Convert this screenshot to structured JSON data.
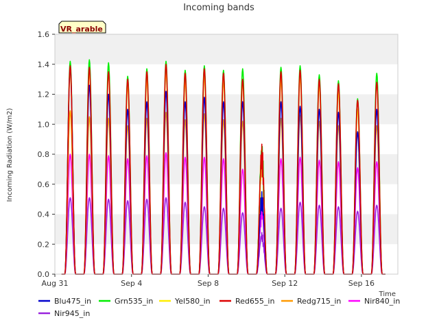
{
  "chart_data": {
    "type": "line",
    "title": "Incoming bands",
    "xlabel": "Time",
    "ylabel": "Incoming Radiation (W/m2)",
    "ylim": [
      0,
      1.6
    ],
    "yticks": [
      "0.0",
      "0.2",
      "0.4",
      "0.6",
      "0.8",
      "1.0",
      "1.2",
      "1.4",
      "1.6"
    ],
    "xlim_day": [
      0,
      17.9
    ],
    "xticks": [
      {
        "day": 0,
        "label": "Aug 31"
      },
      {
        "day": 4,
        "label": "Sep 4"
      },
      {
        "day": 8,
        "label": "Sep 8"
      },
      {
        "day": 12,
        "label": "Sep 12"
      },
      {
        "day": 16,
        "label": "Sep 16"
      }
    ],
    "tag": "VR_arable",
    "grid": "horizontal bands",
    "legend_position": "bottom",
    "day_of_peak": [
      0.8,
      1.8,
      2.8,
      3.8,
      4.8,
      5.8,
      6.8,
      7.8,
      8.8,
      9.8,
      10.8,
      11.8,
      12.8,
      13.8,
      14.8,
      15.8,
      16.8
    ],
    "series": [
      {
        "name": "Blu475_in",
        "color": "#0000cc",
        "peaks": [
          1.38,
          1.26,
          1.2,
          1.1,
          1.15,
          1.22,
          1.15,
          1.18,
          1.15,
          1.15,
          0.55,
          1.15,
          1.12,
          1.1,
          1.08,
          0.95,
          1.1
        ]
      },
      {
        "name": "Grn535_in",
        "color": "#00ee00",
        "peaks": [
          1.42,
          1.43,
          1.41,
          1.32,
          1.37,
          1.42,
          1.36,
          1.39,
          1.36,
          1.37,
          0.89,
          1.38,
          1.39,
          1.33,
          1.29,
          1.17,
          1.34
        ]
      },
      {
        "name": "Yel580_in",
        "color": "#ffee00",
        "peaks": [
          1.35,
          1.35,
          1.34,
          1.26,
          1.3,
          1.35,
          1.29,
          1.32,
          1.29,
          1.28,
          0.85,
          1.3,
          1.32,
          1.26,
          1.22,
          1.1,
          1.28
        ]
      },
      {
        "name": "Red655_in",
        "color": "#dd0000",
        "peaks": [
          1.39,
          1.38,
          1.35,
          1.3,
          1.35,
          1.4,
          1.34,
          1.37,
          1.34,
          1.3,
          0.87,
          1.35,
          1.36,
          1.3,
          1.27,
          1.16,
          1.28
        ]
      },
      {
        "name": "Redg715_in",
        "color": "#ff9900",
        "peaks": [
          1.09,
          1.05,
          1.04,
          0.99,
          1.04,
          1.08,
          1.03,
          1.07,
          1.03,
          1.02,
          0.82,
          1.04,
          1.06,
          1.02,
          0.99,
          0.95,
          0.99
        ]
      },
      {
        "name": "Nir840_in",
        "color": "#ff00ff",
        "peaks": [
          0.8,
          0.8,
          0.79,
          0.77,
          0.79,
          0.81,
          0.78,
          0.78,
          0.77,
          0.7,
          0.45,
          0.77,
          0.78,
          0.76,
          0.75,
          0.71,
          0.75
        ]
      },
      {
        "name": "Nir945_in",
        "color": "#9922dd",
        "peaks": [
          0.51,
          0.51,
          0.5,
          0.49,
          0.5,
          0.51,
          0.48,
          0.45,
          0.44,
          0.41,
          0.28,
          0.44,
          0.48,
          0.46,
          0.45,
          0.42,
          0.46
        ]
      }
    ]
  }
}
